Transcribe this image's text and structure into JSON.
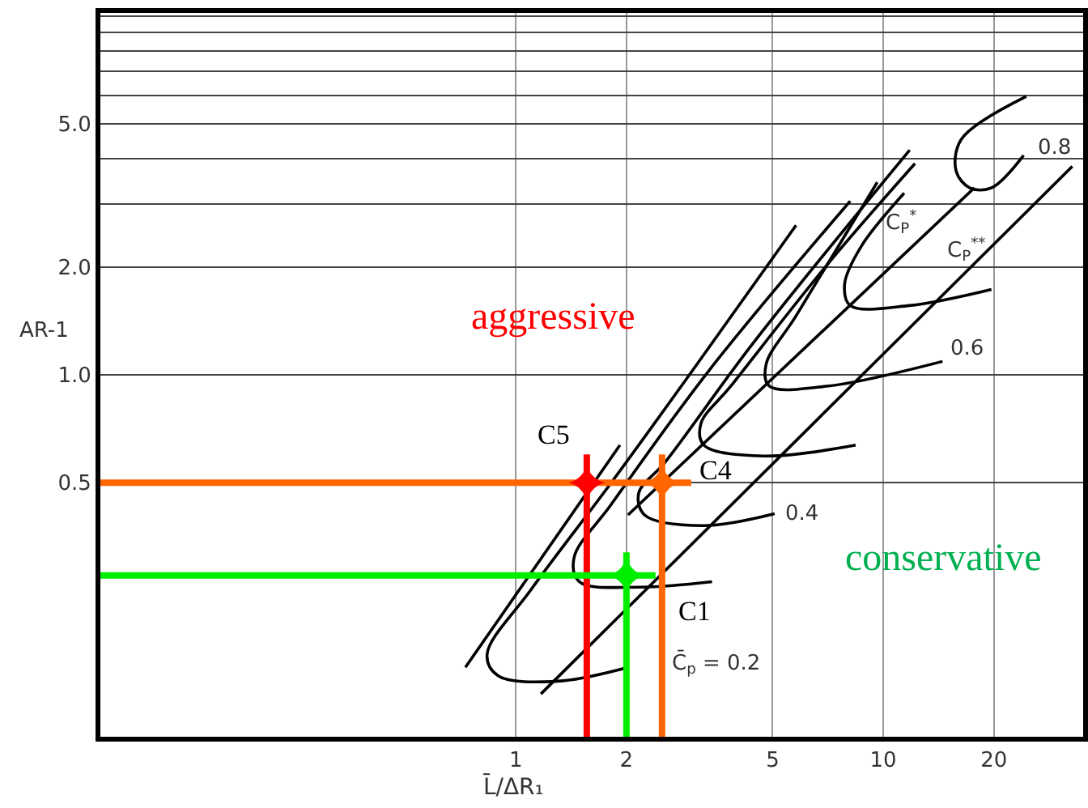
{
  "chart_data": {
    "type": "line",
    "xlabel": "L̄/ΔR₁",
    "ylabel": "AR-1",
    "log": "xy",
    "xlim": [
      0.074,
      35
    ],
    "ylim": [
      0.098,
      10.2
    ],
    "xticks": [
      1,
      2,
      5,
      10,
      20
    ],
    "yticks": [
      {
        "value": 0.5,
        "label": "0.5"
      },
      {
        "value": 1,
        "label": "1.0"
      },
      {
        "value": 2,
        "label": "2.0"
      },
      {
        "value": 3,
        "label": null
      },
      {
        "value": 4,
        "label": null
      },
      {
        "value": 5,
        "label": "5.0"
      },
      {
        "value": 6,
        "label": null
      },
      {
        "value": 7,
        "label": null
      },
      {
        "value": 8,
        "label": null
      },
      {
        "value": 9,
        "label": null
      },
      {
        "value": 10,
        "label": null
      }
    ],
    "grid": true,
    "marker": "none",
    "line_style": "solid",
    "series": [
      {
        "color": "#000000",
        "x": [
          0.729,
          1.92
        ],
        "values": [
          0.153,
          0.637
        ]
      },
      {
        "color": "#000000",
        "x": [
          2.02,
          1.3,
          0.894,
          0.835,
          1.1,
          1.82,
          3.03,
          5.79
        ],
        "values": [
          0.153,
          0.14,
          0.145,
          0.166,
          0.252,
          0.501,
          1.03,
          2.61
        ]
      },
      {
        "color": "#000000",
        "x": [
          1.17,
          32.7
        ],
        "values": [
          0.129,
          3.81
        ]
      },
      {
        "color": "#000000",
        "x": [
          2.02,
          17.7
        ],
        "values": [
          0.407,
          3.32
        ]
      },
      {
        "color": "#000000",
        "x": [
          3.42,
          2.16,
          1.49,
          1.44,
          1.82,
          3.36,
          8.13
        ],
        "values": [
          0.265,
          0.256,
          0.265,
          0.309,
          0.436,
          1.03,
          3.05
        ]
      },
      {
        "color": "#000000",
        "x": [
          5.06,
          3.25,
          2.24,
          2.16,
          2.56,
          4.41,
          11.8
        ],
        "values": [
          0.41,
          0.38,
          0.407,
          0.468,
          0.574,
          1.22,
          4.23
        ]
      },
      {
        "color": "#000000",
        "x": [
          8.41,
          4.72,
          3.25,
          3.19,
          3.85,
          7.1,
          12.2
        ],
        "values": [
          0.637,
          0.594,
          0.637,
          0.731,
          0.931,
          2.05,
          3.88
        ]
      },
      {
        "color": "#000000",
        "x": [
          14.5,
          7.1,
          4.89,
          4.8,
          5.79,
          9.63
        ],
        "values": [
          1.09,
          0.931,
          0.931,
          1.07,
          1.46,
          3.44
        ]
      },
      {
        "color": "#000000",
        "x": [
          19.7,
          11.8,
          8.13,
          7.85,
          8.71,
          11.4
        ],
        "values": [
          1.73,
          1.56,
          1.56,
          1.79,
          2.28,
          3.21
        ]
      },
      {
        "color": "#000000",
        "x": [
          24.1,
          19.7,
          17.2,
          15.8,
          16.3,
          24.5
        ],
        "values": [
          4.09,
          3.32,
          3.32,
          3.69,
          4.53,
          5.97
        ]
      },
      {
        "color": "#ff6600",
        "x": [
          0.074,
          3.0
        ],
        "values": [
          0.5,
          0.5
        ]
      },
      {
        "color": "#ff6600",
        "x": [
          2.5,
          2.5
        ],
        "values": [
          0.098,
          0.6
        ]
      },
      {
        "color": "#ff0000",
        "x": [
          1.56,
          1.56
        ],
        "values": [
          0.098,
          0.6
        ]
      },
      {
        "color": "#00ee00",
        "x": [
          0.074,
          2.4
        ],
        "values": [
          0.276,
          0.276
        ]
      },
      {
        "color": "#00ee00",
        "x": [
          2.0,
          2.0
        ],
        "values": [
          0.098,
          0.32
        ]
      },
      {
        "type": "scatter",
        "marker": "star",
        "x": [
          1.56,
          2.5,
          2.0
        ],
        "values": [
          0.5,
          0.5,
          0.276
        ],
        "colors": [
          "#ff0000",
          "#ff6600",
          "#00ee00"
        ]
      }
    ],
    "annotations": [
      {
        "text": "C5",
        "x": 1.56,
        "y": 0.5
      },
      {
        "text": "C4",
        "x": 2.5,
        "y": 0.5
      },
      {
        "text": "C1",
        "x": 2.0,
        "y": 0.276
      },
      {
        "text": "C̄$_{p}$ = 0.2",
        "x": 2.02,
        "y": 0.153
      },
      {
        "text": "0.4",
        "x": 5.06,
        "y": 0.41
      },
      {
        "text": "0.6",
        "x": 14.5,
        "y": 1.09
      },
      {
        "text": "0.8",
        "x": 24.1,
        "y": 4.09
      },
      "aggressive",
      "conservative",
      "C$_{P}$$^{*}$",
      "C$_{P}$$^{**}$"
    ]
  }
}
